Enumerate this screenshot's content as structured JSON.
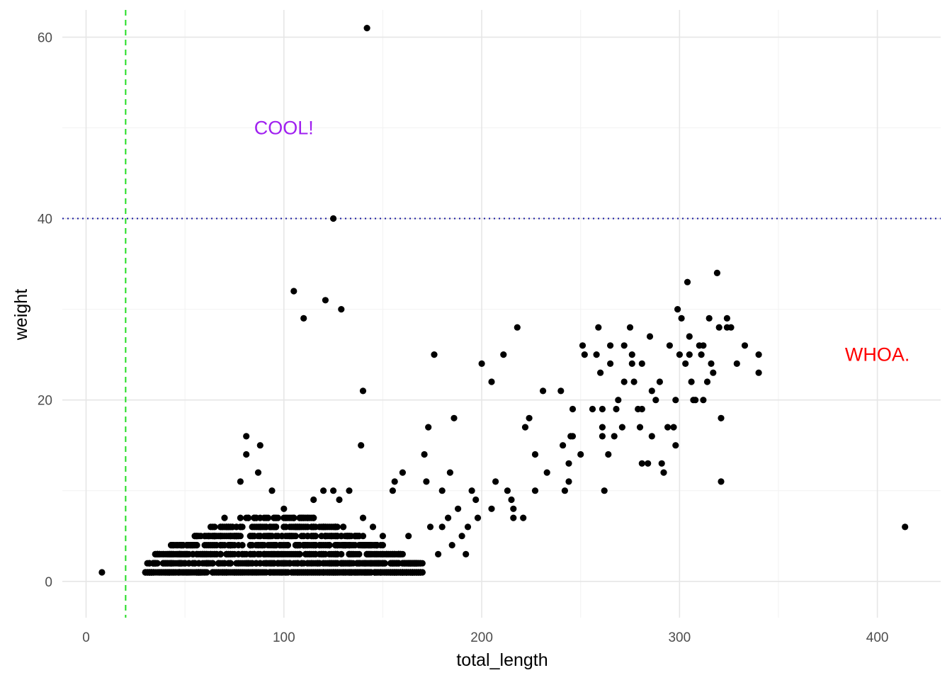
{
  "chart_data": {
    "type": "scatter",
    "xlabel": "total_length",
    "ylabel": "weight",
    "xlim": [
      -12,
      432
    ],
    "ylim": [
      -4,
      63
    ],
    "x_ticks": [
      0,
      100,
      200,
      300,
      400
    ],
    "y_ticks": [
      0,
      20,
      40,
      60
    ],
    "x_minor_ticks": [
      50,
      150,
      250,
      350
    ],
    "y_minor_ticks": [
      10,
      30,
      50
    ],
    "grid": true,
    "point_color": "#000000",
    "reference_lines": [
      {
        "orientation": "vertical",
        "value": 20,
        "style": "dashed",
        "color": "#22dd22"
      },
      {
        "orientation": "horizontal",
        "value": 40,
        "style": "dotted",
        "color": "#1a1aa0"
      }
    ],
    "annotations": [
      {
        "text": "COOL!",
        "x": 100,
        "y": 50,
        "color": "#a020f0"
      },
      {
        "text": "WHOA.",
        "x": 400,
        "y": 25,
        "color": "#ff0000"
      }
    ],
    "points": [
      [
        8,
        1
      ],
      [
        142,
        61
      ],
      [
        125,
        40
      ],
      [
        105,
        32
      ],
      [
        121,
        31
      ],
      [
        129,
        30
      ],
      [
        110,
        29
      ],
      [
        140,
        21
      ],
      [
        139,
        15
      ],
      [
        176,
        25
      ],
      [
        200,
        24
      ],
      [
        205,
        22
      ],
      [
        211,
        25
      ],
      [
        218,
        28
      ],
      [
        222,
        17
      ],
      [
        224,
        18
      ],
      [
        186,
        18
      ],
      [
        173,
        17
      ],
      [
        171,
        14
      ],
      [
        81,
        16
      ],
      [
        81,
        14
      ],
      [
        88,
        15
      ],
      [
        87,
        12
      ],
      [
        78,
        11
      ],
      [
        94,
        10
      ],
      [
        100,
        8
      ],
      [
        155,
        10
      ],
      [
        156,
        11
      ],
      [
        160,
        12
      ],
      [
        172,
        11
      ],
      [
        184,
        12
      ],
      [
        195,
        10
      ],
      [
        197,
        9
      ],
      [
        207,
        11
      ],
      [
        213,
        10
      ],
      [
        215,
        9
      ],
      [
        216,
        8
      ],
      [
        216,
        7
      ],
      [
        221,
        7
      ],
      [
        227,
        14
      ],
      [
        227,
        10
      ],
      [
        231,
        21
      ],
      [
        233,
        12
      ],
      [
        240,
        21
      ],
      [
        241,
        15
      ],
      [
        242,
        10
      ],
      [
        244,
        13
      ],
      [
        244,
        11
      ],
      [
        245,
        16
      ],
      [
        246,
        19
      ],
      [
        246,
        16
      ],
      [
        250,
        14
      ],
      [
        251,
        26
      ],
      [
        252,
        25
      ],
      [
        256,
        19
      ],
      [
        258,
        25
      ],
      [
        259,
        28
      ],
      [
        260,
        23
      ],
      [
        261,
        19
      ],
      [
        261,
        17
      ],
      [
        261,
        16
      ],
      [
        262,
        10
      ],
      [
        264,
        14
      ],
      [
        265,
        26
      ],
      [
        265,
        24
      ],
      [
        267,
        16
      ],
      [
        268,
        19
      ],
      [
        269,
        20
      ],
      [
        271,
        17
      ],
      [
        272,
        26
      ],
      [
        272,
        22
      ],
      [
        275,
        28
      ],
      [
        276,
        25
      ],
      [
        276,
        24
      ],
      [
        277,
        22
      ],
      [
        279,
        19
      ],
      [
        280,
        17
      ],
      [
        281,
        24
      ],
      [
        281,
        19
      ],
      [
        281,
        13
      ],
      [
        284,
        13
      ],
      [
        285,
        27
      ],
      [
        286,
        16
      ],
      [
        286,
        21
      ],
      [
        288,
        20
      ],
      [
        290,
        22
      ],
      [
        291,
        13
      ],
      [
        292,
        12
      ],
      [
        294,
        17
      ],
      [
        295,
        26
      ],
      [
        297,
        17
      ],
      [
        298,
        15
      ],
      [
        298,
        20
      ],
      [
        299,
        30
      ],
      [
        300,
        25
      ],
      [
        301,
        29
      ],
      [
        303,
        24
      ],
      [
        304,
        33
      ],
      [
        305,
        27
      ],
      [
        305,
        25
      ],
      [
        306,
        22
      ],
      [
        307,
        20
      ],
      [
        308,
        20
      ],
      [
        310,
        26
      ],
      [
        311,
        25
      ],
      [
        312,
        26
      ],
      [
        312,
        20
      ],
      [
        314,
        22
      ],
      [
        315,
        29
      ],
      [
        316,
        24
      ],
      [
        317,
        23
      ],
      [
        319,
        34
      ],
      [
        320,
        28
      ],
      [
        321,
        11
      ],
      [
        321,
        18
      ],
      [
        324,
        28
      ],
      [
        324,
        29
      ],
      [
        326,
        28
      ],
      [
        329,
        24
      ],
      [
        333,
        26
      ],
      [
        340,
        25
      ],
      [
        340,
        23
      ],
      [
        414,
        6
      ],
      [
        180,
        10
      ],
      [
        188,
        8
      ],
      [
        193,
        6
      ],
      [
        198,
        7
      ],
      [
        205,
        8
      ],
      [
        180,
        6
      ],
      [
        174,
        6
      ],
      [
        183,
        7
      ],
      [
        190,
        5
      ],
      [
        185,
        4
      ],
      [
        178,
        3
      ],
      [
        170,
        2
      ],
      [
        167,
        1
      ],
      [
        163,
        5
      ],
      [
        160,
        3
      ],
      [
        157,
        1
      ],
      [
        192,
        3
      ],
      [
        65,
        5
      ],
      [
        70,
        7
      ],
      [
        75,
        5
      ],
      [
        85,
        6
      ],
      [
        90,
        5
      ],
      [
        95,
        4
      ],
      [
        105,
        5
      ],
      [
        110,
        7
      ],
      [
        115,
        9
      ],
      [
        120,
        10
      ],
      [
        125,
        10
      ],
      [
        128,
        9
      ],
      [
        133,
        10
      ],
      [
        140,
        7
      ],
      [
        145,
        6
      ],
      [
        150,
        5
      ],
      [
        55,
        4
      ],
      [
        60,
        3
      ],
      [
        50,
        2
      ],
      [
        45,
        1
      ],
      [
        40,
        2
      ],
      [
        35,
        1
      ],
      [
        30,
        1
      ]
    ],
    "dense_band": {
      "x_range": [
        30,
        170
      ],
      "y_range": [
        1,
        8
      ]
    }
  }
}
